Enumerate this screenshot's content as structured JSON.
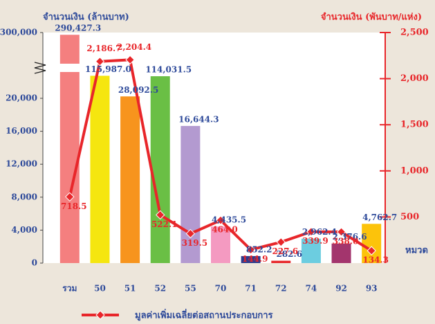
{
  "chart_data": {
    "type": "bar_line",
    "y_title": "จำนวนเงิน (ล้านบาท)",
    "y2_title": "จำนวนเงิน (พันบาท/แห่ง)",
    "x_title": "หมวด",
    "categories": [
      "รวม",
      "50",
      "51",
      "52",
      "55",
      "70",
      "71",
      "72",
      "74",
      "92",
      "93"
    ],
    "ylim": [
      0,
      300000
    ],
    "yticks": [
      0,
      {
        "value": 4000,
        "label": "4,000"
      },
      {
        "value": 8000,
        "label": "8,000"
      },
      {
        "value": 12000,
        "label": "12,000"
      },
      {
        "value": 16000,
        "label": "16,000"
      },
      {
        "value": 20000,
        "label": "20,000"
      },
      {
        "value": 300000,
        "label": "300,000"
      }
    ],
    "axis_break": true,
    "y2lim": [
      0,
      2500
    ],
    "y2ticks": [
      {
        "value": 500,
        "label": "500"
      },
      {
        "value": 1000,
        "label": "1,000"
      },
      {
        "value": 1500,
        "label": "1,500"
      },
      {
        "value": 2000,
        "label": "2,000"
      },
      {
        "value": 2500,
        "label": "2,500"
      }
    ],
    "series": [
      {
        "type": "bar",
        "colors": [
          "#f47f7f",
          "#f5e60f",
          "#f7941d",
          "#6abf45",
          "#b39ad0",
          "#f49ac1",
          "#2e3a8c",
          "#e8262a",
          "#6ccde0",
          "#a3356d",
          "#fcc30b"
        ],
        "values": [
          290427.3,
          115987.0,
          28092.5,
          114031.5,
          16644.3,
          4435.5,
          852.2,
          282.6,
          2962.4,
          2376.6,
          4762.7
        ],
        "value_labels": [
          "290,427.3",
          "115,987.0",
          "28,092.5",
          "114,031.5",
          "16,644.3",
          "4,435.5",
          "852.2",
          "282.6",
          "2,962.4",
          "2,376.6",
          "4,762.7"
        ]
      },
      {
        "type": "line",
        "axis": "y2",
        "name": "มูลค่าเพิ่มเฉลี่ยต่อสถานประกอบการ",
        "color": "#e8262a",
        "values": [
          718.5,
          2186.7,
          2204.4,
          522.1,
          319.5,
          464.0,
          144.9,
          227.6,
          339.9,
          338.0,
          134.3
        ],
        "value_labels": [
          "718.5",
          "2,186.7",
          "2,204.4",
          "522.1",
          "319.5",
          "464.0",
          "144.9",
          "227.6",
          "339.9",
          "338.0",
          "134.3"
        ]
      }
    ]
  }
}
